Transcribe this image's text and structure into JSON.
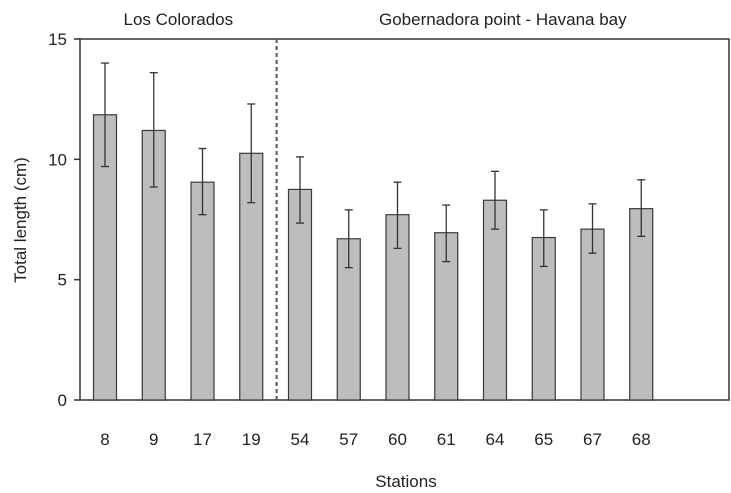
{
  "chart_data": {
    "type": "bar",
    "groups": [
      {
        "label": "Los Colorados",
        "categories": [
          "8",
          "9",
          "17",
          "19"
        ]
      },
      {
        "label": "Gobernadora point - Havana bay",
        "categories": [
          "54",
          "57",
          "60",
          "61",
          "64",
          "65",
          "67",
          "68"
        ]
      }
    ],
    "categories": [
      "8",
      "9",
      "17",
      "19",
      "54",
      "57",
      "60",
      "61",
      "64",
      "65",
      "67",
      "68"
    ],
    "values": [
      11.85,
      11.2,
      9.05,
      10.25,
      8.75,
      6.7,
      7.7,
      6.95,
      8.3,
      6.75,
      7.1,
      7.95
    ],
    "error_low": [
      9.7,
      8.85,
      7.7,
      8.2,
      7.35,
      5.5,
      6.3,
      5.75,
      7.1,
      5.55,
      6.1,
      6.8
    ],
    "error_high": [
      14.0,
      13.6,
      10.45,
      12.3,
      10.1,
      7.9,
      9.05,
      8.1,
      9.5,
      7.9,
      8.15,
      9.15
    ],
    "ylabel": "Total length (cm)",
    "xlabel": "Stations",
    "ylim": [
      0,
      15
    ],
    "yticks": [
      0,
      5,
      10,
      15
    ],
    "divider_after_category": "19",
    "colors": {
      "bar_fill": "#bdbdbd",
      "bar_stroke": "#3a3a3a",
      "axis": "#333333",
      "divider": "#555555"
    }
  }
}
